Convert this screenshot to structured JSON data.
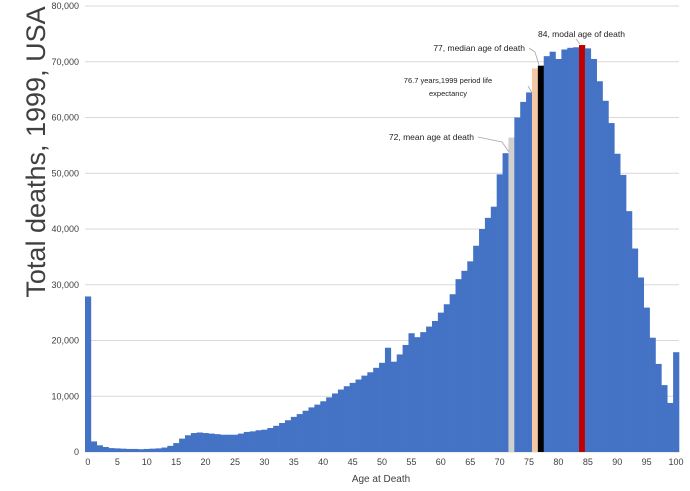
{
  "chart_data": {
    "type": "bar",
    "title": "",
    "xlabel": "Age at Death",
    "ylabel": "Total deaths, 1999, USA",
    "xlim": [
      0,
      100
    ],
    "ylim": [
      0,
      80000
    ],
    "grid": true,
    "legend": "none",
    "x": [
      0,
      1,
      2,
      3,
      4,
      5,
      6,
      7,
      8,
      9,
      10,
      11,
      12,
      13,
      14,
      15,
      16,
      17,
      18,
      19,
      20,
      21,
      22,
      23,
      24,
      25,
      26,
      27,
      28,
      29,
      30,
      31,
      32,
      33,
      34,
      35,
      36,
      37,
      38,
      39,
      40,
      41,
      42,
      43,
      44,
      45,
      46,
      47,
      48,
      49,
      50,
      51,
      52,
      53,
      54,
      55,
      56,
      57,
      58,
      59,
      60,
      61,
      62,
      63,
      64,
      65,
      66,
      67,
      68,
      69,
      70,
      71,
      72,
      73,
      74,
      75,
      76,
      77,
      78,
      79,
      80,
      81,
      82,
      83,
      84,
      85,
      86,
      87,
      88,
      89,
      90,
      91,
      92,
      93,
      94,
      95,
      96,
      97,
      98,
      99,
      100
    ],
    "values": [
      27900,
      1900,
      1200,
      900,
      700,
      650,
      600,
      550,
      550,
      500,
      550,
      600,
      650,
      800,
      1100,
      1600,
      2400,
      3000,
      3400,
      3500,
      3400,
      3300,
      3200,
      3100,
      3100,
      3100,
      3300,
      3600,
      3700,
      3900,
      4000,
      4300,
      4700,
      5200,
      5700,
      6300,
      6800,
      7400,
      8000,
      8500,
      9100,
      9800,
      10500,
      11200,
      11800,
      12400,
      13000,
      13700,
      14300,
      15100,
      16000,
      18700,
      16200,
      17500,
      19200,
      21300,
      20600,
      21500,
      22500,
      23500,
      25000,
      26500,
      28300,
      31000,
      32500,
      34200,
      37000,
      40000,
      42000,
      44000,
      49800,
      53600,
      56400,
      60000,
      62800,
      64500,
      68800,
      69300,
      71000,
      71800,
      70500,
      72200,
      72500,
      72600,
      73000,
      72400,
      70500,
      66500,
      63000,
      59000,
      53500,
      49700,
      43200,
      36500,
      31300,
      25900,
      20500,
      15800,
      12000,
      8800,
      17900
    ],
    "highlights": [
      {
        "age": 72,
        "color": "#d0d0d0",
        "label": "72, mean age at death"
      },
      {
        "age": 76,
        "color": "#f4c8a4",
        "label": "76.7 years,1999 period life expectancy"
      },
      {
        "age": 77,
        "color": "#000000",
        "label": "77, median age of death"
      },
      {
        "age": 84,
        "color": "#c00000",
        "label": "84, modal age of death"
      }
    ],
    "bar_color": "#4472c4",
    "y_ticks": [
      0,
      10000,
      20000,
      30000,
      40000,
      50000,
      60000,
      70000,
      80000
    ],
    "y_tick_labels": [
      "0",
      "10,000",
      "20,000",
      "30,000",
      "40,000",
      "50,000",
      "60,000",
      "70,000",
      "80,000"
    ],
    "x_ticks": [
      0,
      5,
      10,
      15,
      20,
      25,
      30,
      35,
      40,
      45,
      50,
      55,
      60,
      65,
      70,
      75,
      80,
      85,
      90,
      95,
      100
    ]
  },
  "annotations": {
    "mean": "72, mean age at death",
    "life_exp_line1": "76.7 years,1999 period life",
    "life_exp_line2": "expectancy",
    "median": "77, median age of death",
    "mode": "84, modal age of death"
  }
}
